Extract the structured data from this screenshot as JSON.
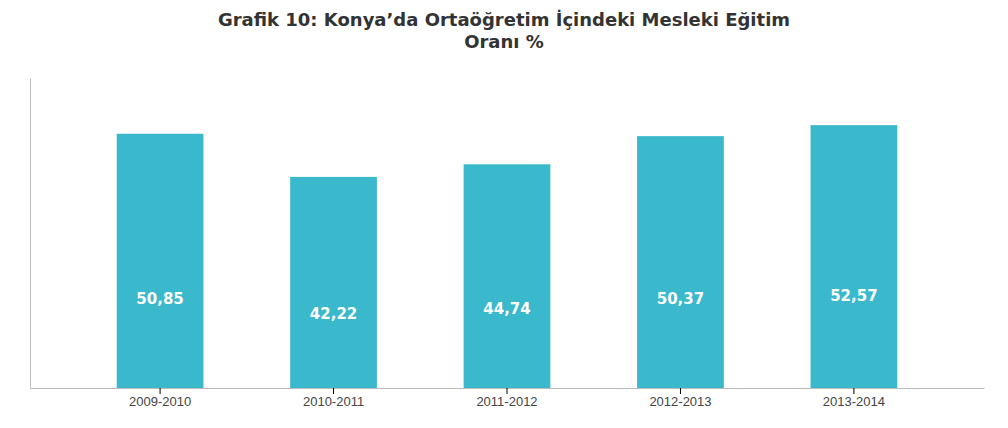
{
  "chart_data": {
    "type": "bar",
    "title": "Grafik 10: Konya’da Ortaöğretim İçindeki Mesleki Eğitim\nOranı %",
    "categories": [
      "2009-2010",
      "2010-2011",
      "2011-2012",
      "2012-2013",
      "2013-2014"
    ],
    "values": [
      50.85,
      42.22,
      44.74,
      50.37,
      52.57
    ],
    "value_labels": [
      "50,85",
      "42,22",
      "44,74",
      "50,37",
      "52,57"
    ],
    "data_labels": true,
    "color": "#3AB8CC",
    "ylim": [
      0,
      62
    ],
    "tick_labels": "x",
    "grid": false
  }
}
